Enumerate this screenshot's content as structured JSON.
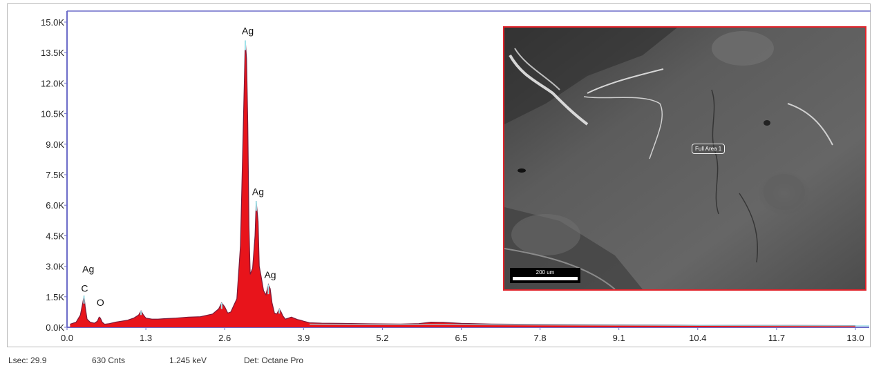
{
  "chart_data": {
    "type": "area",
    "xlim": [
      0.0,
      13.0
    ],
    "ylim": [
      0,
      15000
    ],
    "x_ticks": [
      "0.0",
      "1.3",
      "2.6",
      "3.9",
      "5.2",
      "6.5",
      "7.8",
      "9.1",
      "10.4",
      "11.7",
      "13.0"
    ],
    "y_ticks": [
      "0.0K",
      "1.5K",
      "3.0K",
      "4.5K",
      "6.0K",
      "7.5K",
      "9.0K",
      "10.5K",
      "12.0K",
      "13.5K",
      "15.0K"
    ],
    "grid": false,
    "colors": {
      "fill": "#e8141b",
      "edge": "#7a1a3a",
      "outline": "#5a4a8a",
      "peak_tip": "#9fe3ea",
      "axis": "#6c6cc8"
    },
    "series": [
      {
        "x": [
          0.05,
          0.15,
          0.22,
          0.26,
          0.28,
          0.3,
          0.33,
          0.38,
          0.45,
          0.5,
          0.53,
          0.55,
          0.58,
          0.62,
          0.7,
          0.8,
          0.9,
          1.0,
          1.1,
          1.18,
          1.22,
          1.26,
          1.3,
          1.4,
          1.5,
          1.6,
          1.8,
          2.0,
          2.2,
          2.4,
          2.5,
          2.55,
          2.6,
          2.65,
          2.7,
          2.8,
          2.86,
          2.9,
          2.94,
          2.96,
          2.98,
          3.0,
          3.02,
          3.06,
          3.1,
          3.12,
          3.15,
          3.17,
          3.2,
          3.24,
          3.28,
          3.32,
          3.35,
          3.38,
          3.42,
          3.46,
          3.5,
          3.53,
          3.56,
          3.6,
          3.7,
          3.8,
          3.85,
          3.9,
          4.0,
          4.2,
          4.5,
          5.0,
          5.5,
          5.8,
          6.0,
          6.2,
          6.5,
          7.0,
          7.8,
          8.5,
          9.1,
          10.0,
          10.4,
          11.0,
          11.7,
          12.5,
          13.0
        ],
        "y": [
          150,
          250,
          600,
          1200,
          1550,
          1000,
          400,
          250,
          200,
          300,
          500,
          450,
          250,
          150,
          180,
          250,
          300,
          350,
          450,
          600,
          800,
          600,
          450,
          400,
          400,
          420,
          450,
          500,
          520,
          650,
          900,
          1200,
          1000,
          700,
          750,
          1400,
          4000,
          9000,
          14100,
          13200,
          10000,
          5000,
          2600,
          2900,
          4500,
          6200,
          5200,
          3000,
          2500,
          1800,
          1600,
          2100,
          1900,
          1200,
          700,
          650,
          900,
          750,
          550,
          400,
          500,
          380,
          350,
          300,
          220,
          200,
          190,
          170,
          160,
          180,
          250,
          240,
          190,
          160,
          140,
          130,
          120,
          110,
          100,
          95,
          90,
          85,
          80
        ]
      }
    ],
    "peak_labels": [
      {
        "text": "Ag",
        "x": 2.98,
        "y": 14200
      },
      {
        "text": "Ag",
        "x": 3.15,
        "y": 6300
      },
      {
        "text": "Ag",
        "x": 3.35,
        "y": 2200
      },
      {
        "text": "Ag",
        "x": 0.35,
        "y": 2500
      },
      {
        "text": "C",
        "x": 0.29,
        "y": 1550
      },
      {
        "text": "O",
        "x": 0.55,
        "y": 850
      }
    ]
  },
  "inset": {
    "area_label": "Full Area 1",
    "scale_label": "200 um"
  },
  "status": {
    "lsec": "Lsec: 29.9",
    "counts": "630 Cnts",
    "energy": "1.245 keV",
    "detector": "Det: Octane Pro"
  }
}
